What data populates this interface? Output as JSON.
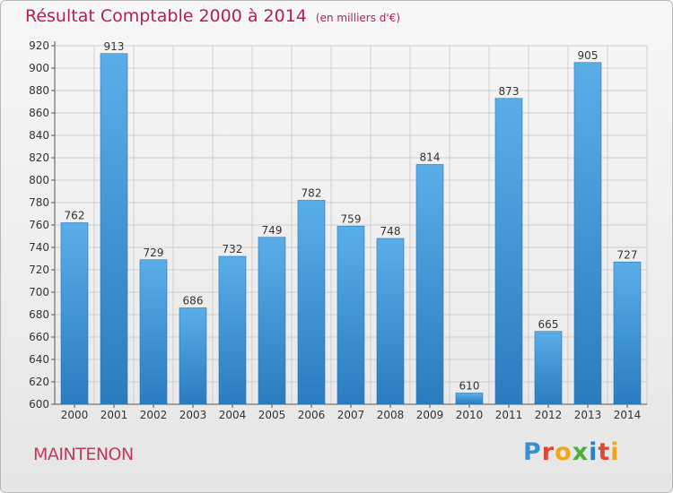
{
  "header": {
    "title": "Résultat Comptable 2000 à 2014",
    "subtitle": "(en milliers d'€)"
  },
  "footer": {
    "city": "MAINTENON",
    "brand": "Proxiti",
    "brand_letters": [
      {
        "char": "P",
        "color": "#3a8fd0"
      },
      {
        "char": "r",
        "color": "#e0492f"
      },
      {
        "char": "o",
        "color": "#f2a51b"
      },
      {
        "char": "x",
        "color": "#4fae3a"
      },
      {
        "char": "i",
        "color": "#2b7fc4"
      },
      {
        "char": "t",
        "color": "#e0492f"
      },
      {
        "char": "i",
        "color": "#f2a51b"
      }
    ]
  },
  "chart_data": {
    "type": "bar",
    "categories": [
      "2000",
      "2001",
      "2002",
      "2003",
      "2004",
      "2005",
      "2006",
      "2007",
      "2008",
      "2009",
      "2010",
      "2011",
      "2012",
      "2013",
      "2014"
    ],
    "values": [
      762,
      913,
      729,
      686,
      732,
      749,
      782,
      759,
      748,
      814,
      610,
      873,
      665,
      905,
      727
    ],
    "ylim": [
      600,
      920
    ],
    "yticks": [
      600,
      620,
      640,
      660,
      680,
      700,
      720,
      740,
      760,
      780,
      800,
      820,
      840,
      860,
      880,
      900,
      920
    ],
    "grid": true,
    "colors": {
      "bar_top": "#5aaee8",
      "bar_bottom": "#2a7cbf",
      "grid": "#cfcfcf",
      "text": "#333333"
    }
  }
}
